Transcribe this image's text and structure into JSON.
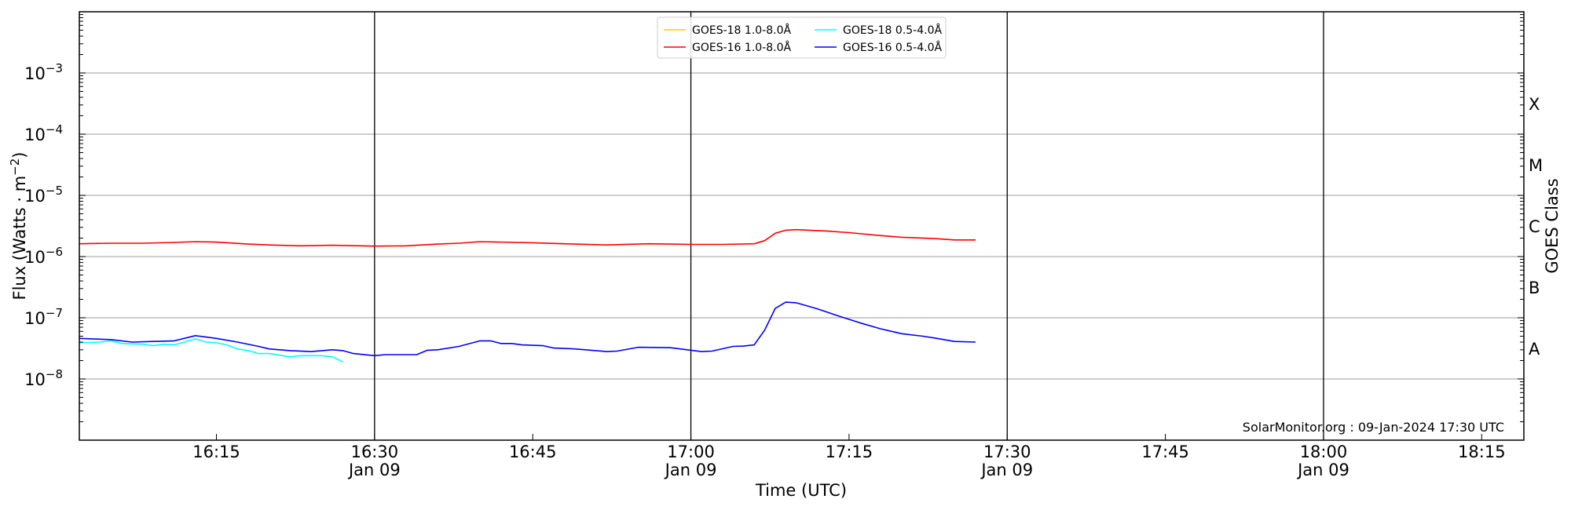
{
  "chart_data": {
    "type": "line",
    "xlabel": "Time (UTC)",
    "ylabel": "Flux (Watts · m⁻²)",
    "ylabel_parts": {
      "main": "Flux (Watts · m",
      "sup": "−2",
      "end": ")"
    },
    "right_ylabel": "GOES Class",
    "y_scale": "log",
    "ylim": [
      1e-09,
      0.01
    ],
    "xlim": [
      "16:02",
      "18:19"
    ],
    "date": "Jan 09",
    "grid": "horizontal at decades",
    "legend_placement": "top-center",
    "y_tick_labels": [
      {
        "value": 0.001,
        "base": "10",
        "exp": "−3"
      },
      {
        "value": 0.0001,
        "base": "10",
        "exp": "−4"
      },
      {
        "value": 1e-05,
        "base": "10",
        "exp": "−5"
      },
      {
        "value": 1e-06,
        "base": "10",
        "exp": "−6"
      },
      {
        "value": 1e-07,
        "base": "10",
        "exp": "−7"
      },
      {
        "value": 1e-08,
        "base": "10",
        "exp": "−8"
      }
    ],
    "x_ticks": [
      {
        "time": "16:15",
        "label": "16:15",
        "sub": ""
      },
      {
        "time": "16:30",
        "label": "16:30",
        "sub": "Jan 09"
      },
      {
        "time": "16:45",
        "label": "16:45",
        "sub": ""
      },
      {
        "time": "17:00",
        "label": "17:00",
        "sub": "Jan 09"
      },
      {
        "time": "17:15",
        "label": "17:15",
        "sub": ""
      },
      {
        "time": "17:30",
        "label": "17:30",
        "sub": "Jan 09"
      },
      {
        "time": "17:45",
        "label": "17:45",
        "sub": ""
      },
      {
        "time": "18:00",
        "label": "18:00",
        "sub": "Jan 09"
      },
      {
        "time": "18:15",
        "label": "18:15",
        "sub": ""
      }
    ],
    "vertical_lines": [
      "16:30",
      "17:00",
      "17:30",
      "18:00"
    ],
    "goes_classes": [
      {
        "label": "X",
        "value": 0.000316
      },
      {
        "label": "M",
        "value": 3.16e-05
      },
      {
        "label": "C",
        "value": 3.16e-06
      },
      {
        "label": "B",
        "value": 3.16e-07
      },
      {
        "label": "A",
        "value": 3.16e-08
      }
    ],
    "series": [
      {
        "name": "GOES-18 1.0-8.0Å",
        "color": "#ffcc00",
        "times": [],
        "values": []
      },
      {
        "name": "GOES-18 0.5-4.0Å",
        "color": "#00ffff",
        "times": [
          "16:02",
          "16:04",
          "16:05",
          "16:06",
          "16:08",
          "16:09",
          "16:10",
          "16:11",
          "16:13",
          "16:14",
          "16:15",
          "16:16",
          "16:17",
          "16:18",
          "16:19",
          "16:20",
          "16:22",
          "16:23",
          "16:25",
          "16:26",
          "16:27"
        ],
        "values": [
          3.9e-08,
          4e-08,
          4.2e-08,
          3.8e-08,
          3.7e-08,
          3.5e-08,
          3.7e-08,
          3.6e-08,
          4.5e-08,
          4e-08,
          3.9e-08,
          3.6e-08,
          3.1e-08,
          2.9e-08,
          2.6e-08,
          2.6e-08,
          2.3e-08,
          2.4e-08,
          2.4e-08,
          2.3e-08,
          1.9e-08
        ]
      },
      {
        "name": "GOES-16 1.0-8.0Å",
        "color": "#ff0000",
        "times": [
          "16:02",
          "16:05",
          "16:08",
          "16:11",
          "16:13",
          "16:15",
          "16:18",
          "16:20",
          "16:23",
          "16:26",
          "16:30",
          "16:33",
          "16:36",
          "16:38",
          "16:40",
          "16:45",
          "16:48",
          "16:52",
          "16:56",
          "16:58",
          "17:00",
          "17:03",
          "17:06",
          "17:07",
          "17:08",
          "17:09",
          "17:10",
          "17:13",
          "17:15",
          "17:18",
          "17:20",
          "17:23",
          "17:25",
          "17:27"
        ],
        "values": [
          1.62e-06,
          1.65e-06,
          1.65e-06,
          1.7e-06,
          1.75e-06,
          1.72e-06,
          1.6e-06,
          1.55e-06,
          1.5e-06,
          1.53e-06,
          1.48e-06,
          1.5e-06,
          1.6e-06,
          1.65e-06,
          1.75e-06,
          1.68e-06,
          1.62e-06,
          1.55e-06,
          1.62e-06,
          1.6e-06,
          1.58e-06,
          1.58e-06,
          1.62e-06,
          1.82e-06,
          2.4e-06,
          2.7e-06,
          2.75e-06,
          2.6e-06,
          2.46e-06,
          2.2e-06,
          2.07e-06,
          1.98e-06,
          1.87e-06,
          1.87e-06
        ]
      },
      {
        "name": "GOES-16 0.5-4.0Å",
        "color": "#0000ff",
        "times": [
          "16:02",
          "16:05",
          "16:07",
          "16:09",
          "16:11",
          "16:13",
          "16:15",
          "16:17",
          "16:19",
          "16:20",
          "16:22",
          "16:24",
          "16:26",
          "16:27",
          "16:28",
          "16:30",
          "16:31",
          "16:34",
          "16:35",
          "16:36",
          "16:38",
          "16:40",
          "16:41",
          "16:42",
          "16:43",
          "16:44",
          "16:46",
          "16:47",
          "16:49",
          "16:52",
          "16:53",
          "16:55",
          "16:58",
          "16:59",
          "17:00",
          "17:01",
          "17:02",
          "17:04",
          "17:05",
          "17:06",
          "17:07",
          "17:08",
          "17:09",
          "17:10",
          "17:12",
          "17:14",
          "17:16",
          "17:18",
          "17:20",
          "17:22",
          "17:23",
          "17:25",
          "17:27"
        ],
        "values": [
          4.6e-08,
          4.4e-08,
          4e-08,
          4.1e-08,
          4.2e-08,
          5.1e-08,
          4.6e-08,
          4e-08,
          3.4e-08,
          3.1e-08,
          2.9e-08,
          2.8e-08,
          3e-08,
          2.9e-08,
          2.6e-08,
          2.4e-08,
          2.5e-08,
          2.5e-08,
          2.95e-08,
          3e-08,
          3.4e-08,
          4.2e-08,
          4.2e-08,
          3.8e-08,
          3.8e-08,
          3.6e-08,
          3.5e-08,
          3.2e-08,
          3.1e-08,
          2.8e-08,
          2.85e-08,
          3.3e-08,
          3.25e-08,
          3.1e-08,
          2.95e-08,
          2.8e-08,
          2.85e-08,
          3.4e-08,
          3.45e-08,
          3.6e-08,
          6.3e-08,
          1.42e-07,
          1.8e-07,
          1.76e-07,
          1.4e-07,
          1.07e-07,
          8.3e-08,
          6.6e-08,
          5.5e-08,
          5e-08,
          4.7e-08,
          4.1e-08,
          4e-08
        ]
      }
    ],
    "legend_order": [
      0,
      1,
      2,
      3
    ],
    "annotation": "SolarMonitor.org : 09-Jan-2024 17:30 UTC"
  }
}
